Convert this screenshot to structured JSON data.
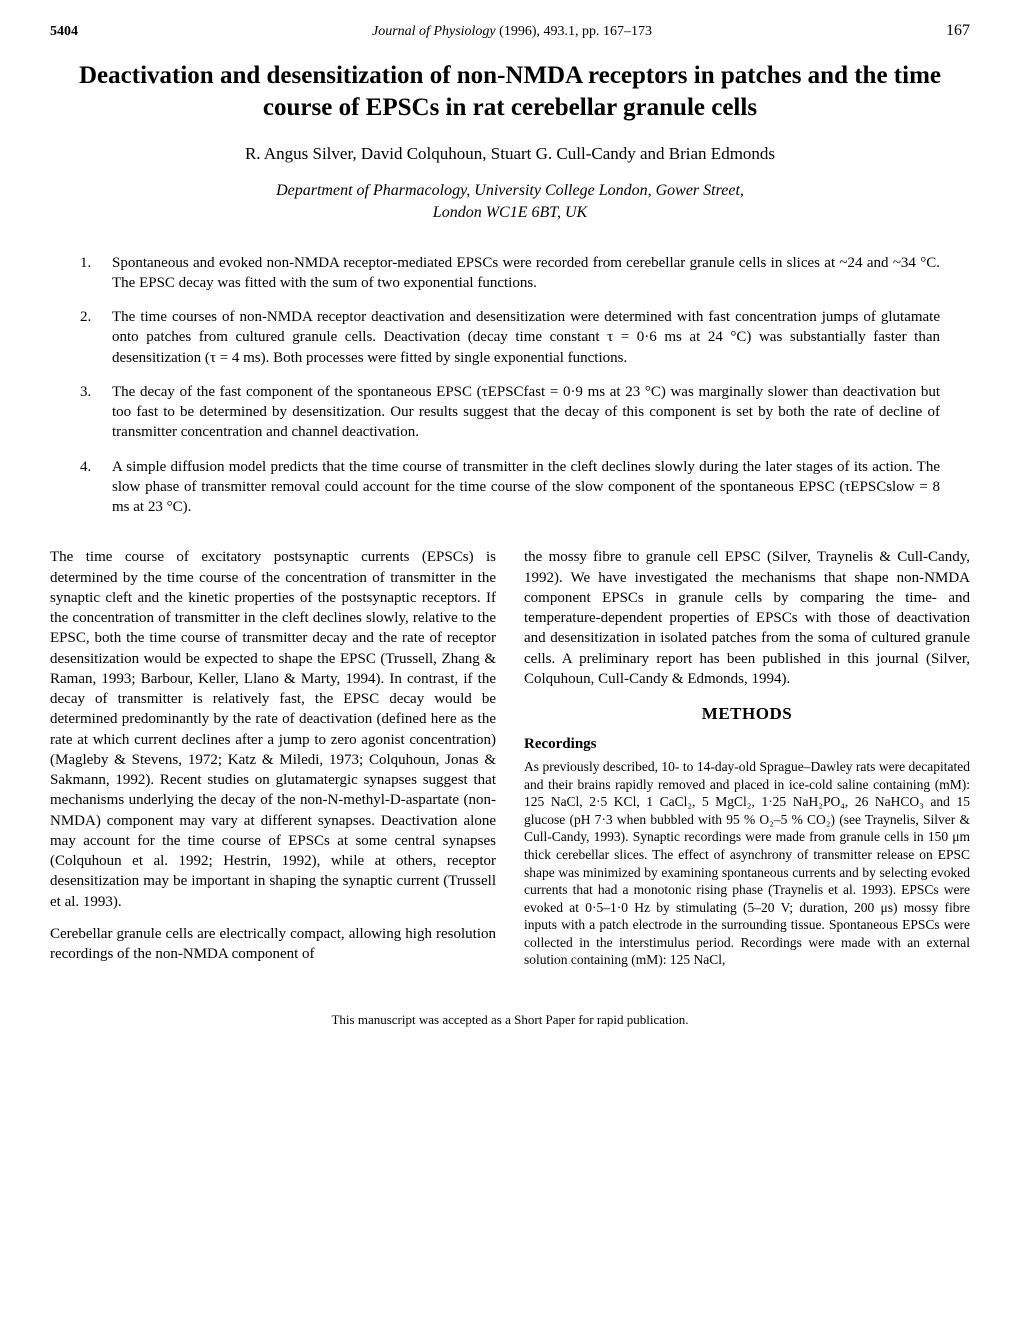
{
  "header": {
    "page_left": "5404",
    "journal": "Journal of Physiology",
    "year_vol": "(1996), 493.1, pp. 167–173",
    "page_right": "167"
  },
  "title": "Deactivation and desensitization of non-NMDA receptors in patches and the time course of EPSCs in rat cerebellar granule cells",
  "authors": "R. Angus Silver, David Colquhoun, Stuart G. Cull-Candy and Brian Edmonds",
  "affiliation_line1": "Department of Pharmacology, University College London, Gower Street,",
  "affiliation_line2": "London WC1E 6BT, UK",
  "points": [
    "Spontaneous and evoked non-NMDA receptor-mediated EPSCs were recorded from cerebellar granule cells in slices at ~24 and ~34 °C. The EPSC decay was fitted with the sum of two exponential functions.",
    "The time courses of non-NMDA receptor deactivation and desensitization were determined with fast concentration jumps of glutamate onto patches from cultured granule cells. Deactivation (decay time constant τ = 0·6 ms at 24 °C) was substantially faster than desensitization (τ = 4 ms). Both processes were fitted by single exponential functions.",
    "The decay of the fast component of the spontaneous EPSC (τEPSCfast = 0·9 ms at 23 °C) was marginally slower than deactivation but too fast to be determined by desensitization. Our results suggest that the decay of this component is set by both the rate of decline of transmitter concentration and channel deactivation.",
    "A simple diffusion model predicts that the time course of transmitter in the cleft declines slowly during the later stages of its action. The slow phase of transmitter removal could account for the time course of the slow component of the spontaneous EPSC (τEPSCslow = 8 ms at 23 °C)."
  ],
  "body": {
    "left_p1": "The time course of excitatory postsynaptic currents (EPSCs) is determined by the time course of the concentration of transmitter in the synaptic cleft and the kinetic properties of the postsynaptic receptors. If the concentration of transmitter in the cleft declines slowly, relative to the EPSC, both the time course of transmitter decay and the rate of receptor desensitization would be expected to shape the EPSC (Trussell, Zhang & Raman, 1993; Barbour, Keller, Llano & Marty, 1994). In contrast, if the decay of transmitter is relatively fast, the EPSC decay would be determined predominantly by the rate of deactivation (defined here as the rate at which current declines after a jump to zero agonist concentration) (Magleby & Stevens, 1972; Katz & Miledi, 1973; Colquhoun, Jonas & Sakmann, 1992). Recent studies on glutamatergic synapses suggest that mechanisms underlying the decay of the non-N-methyl-D-aspartate (non-NMDA) component may vary at different synapses. Deactivation alone may account for the time course of EPSCs at some central synapses (Colquhoun et al. 1992; Hestrin, 1992), while at others, receptor desensitization may be important in shaping the synaptic current (Trussell et al. 1993).",
    "left_p2": "Cerebellar granule cells are electrically compact, allowing high resolution recordings of the non-NMDA component of",
    "right_p1": "the mossy fibre to granule cell EPSC (Silver, Traynelis & Cull-Candy, 1992). We have investigated the mechanisms that shape non-NMDA component EPSCs in granule cells by comparing the time- and temperature-dependent properties of EPSCs with those of deactivation and desensitization in isolated patches from the soma of cultured granule cells. A preliminary report has been published in this journal (Silver, Colquhoun, Cull-Candy & Edmonds, 1994).",
    "methods_heading": "METHODS",
    "recordings_heading": "Recordings",
    "recordings_body": "As previously described, 10- to 14-day-old Sprague–Dawley rats were decapitated and their brains rapidly removed and placed in ice-cold saline containing (mM): 125 NaCl, 2·5 KCl, 1 CaCl₂, 5 MgCl₂, 1·25 NaH₂PO₄, 26 NaHCO₃ and 15 glucose (pH 7·3 when bubbled with 95 % O₂–5 % CO₂) (see Traynelis, Silver & Cull-Candy, 1993). Synaptic recordings were made from granule cells in 150 μm thick cerebellar slices. The effect of asynchrony of transmitter release on EPSC shape was minimized by examining spontaneous currents and by selecting evoked currents that had a monotonic rising phase (Traynelis et al. 1993). EPSCs were evoked at 0·5–1·0 Hz by stimulating (5–20 V; duration, 200 μs) mossy fibre inputs with a patch electrode in the surrounding tissue. Spontaneous EPSCs were collected in the interstimulus period. Recordings were made with an external solution containing (mM): 125 NaCl,"
  },
  "footer": "This manuscript was accepted as a Short Paper for rapid publication."
}
